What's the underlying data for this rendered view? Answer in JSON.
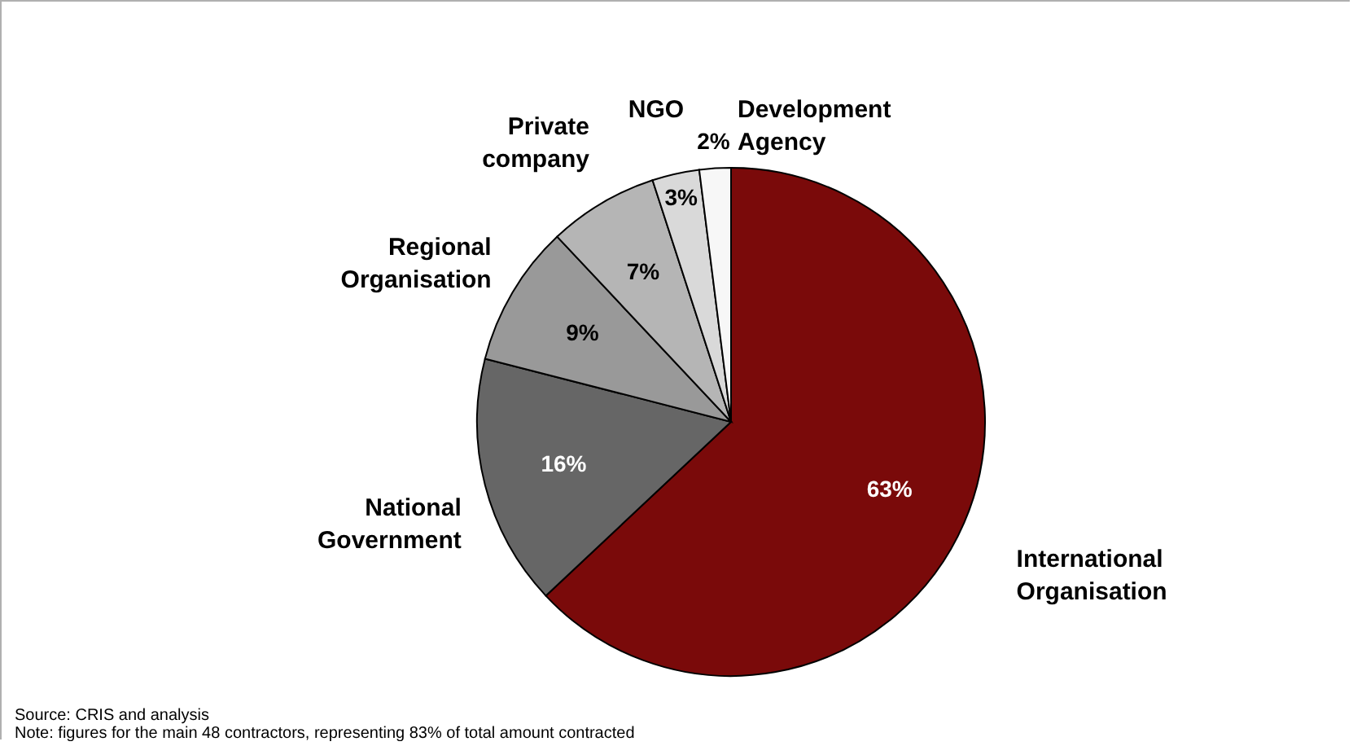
{
  "chart_data": {
    "type": "pie",
    "categories": [
      "International Organisation",
      "National Government",
      "Regional Organisation",
      "Private company",
      "NGO",
      "Development Agency"
    ],
    "values": [
      63,
      16,
      9,
      7,
      3,
      2
    ],
    "value_labels": [
      "63%",
      "16%",
      "9%",
      "7%",
      "3%",
      "2%"
    ],
    "colors": [
      "#7a0a0a",
      "#666666",
      "#999999",
      "#b5b5b5",
      "#d9d9d9",
      "#f7f7f7"
    ],
    "legend": false,
    "annotations": [
      "Source: CRIS and analysis",
      "Note: figures for the main 48 contractors, representing 83% of total amount contracted"
    ]
  }
}
